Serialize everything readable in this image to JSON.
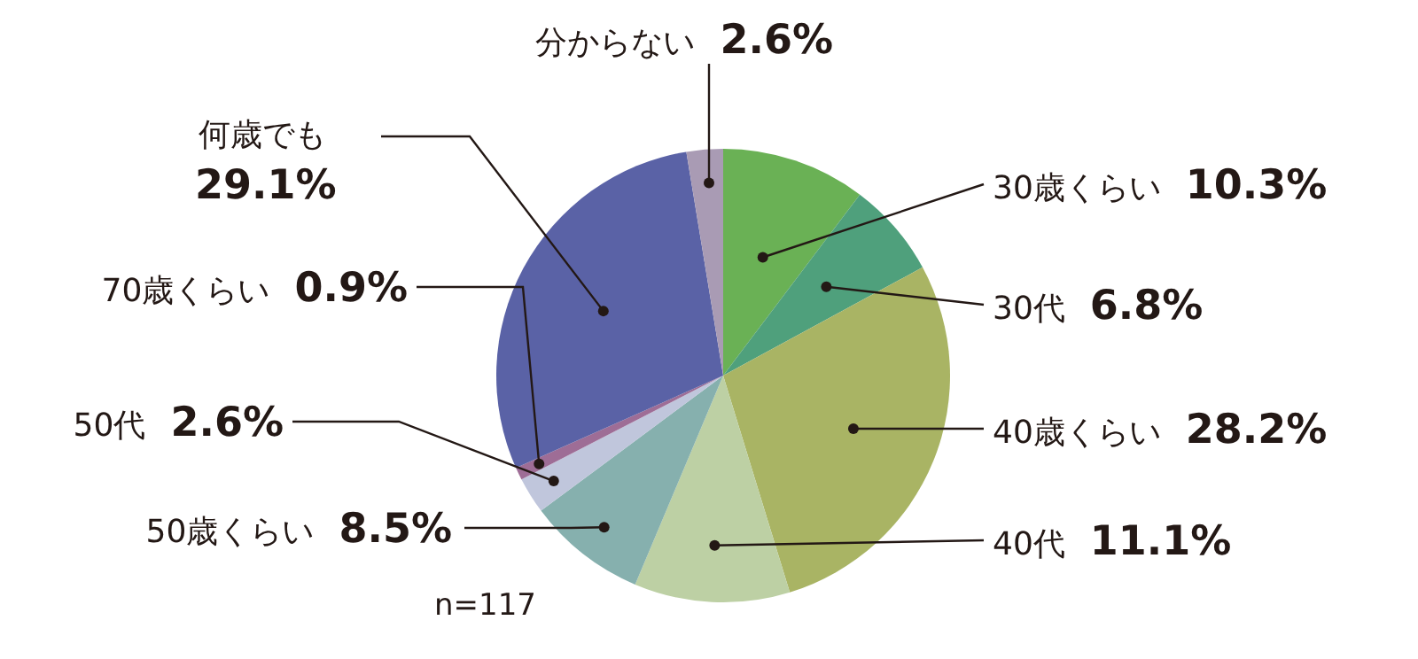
{
  "chart_data": {
    "type": "pie",
    "categories": [
      "30歳くらい",
      "30代",
      "40歳くらい",
      "40代",
      "50歳くらい",
      "50代",
      "70歳くらい",
      "何歳でも",
      "分からない"
    ],
    "values": [
      10.3,
      6.8,
      28.2,
      11.1,
      8.5,
      2.6,
      0.9,
      29.1,
      2.6
    ],
    "value_labels": [
      "10.3%",
      "6.8%",
      "28.2%",
      "11.1%",
      "8.5%",
      "2.6%",
      "0.9%",
      "29.1%",
      "2.6%"
    ],
    "colors": [
      "#6ab155",
      "#4fa07c",
      "#a9b464",
      "#bdd0a4",
      "#86b0ae",
      "#c0c6dc",
      "#9e6d96",
      "#5a62a6",
      "#a99bb4"
    ],
    "annotations": [
      "n=117"
    ]
  }
}
